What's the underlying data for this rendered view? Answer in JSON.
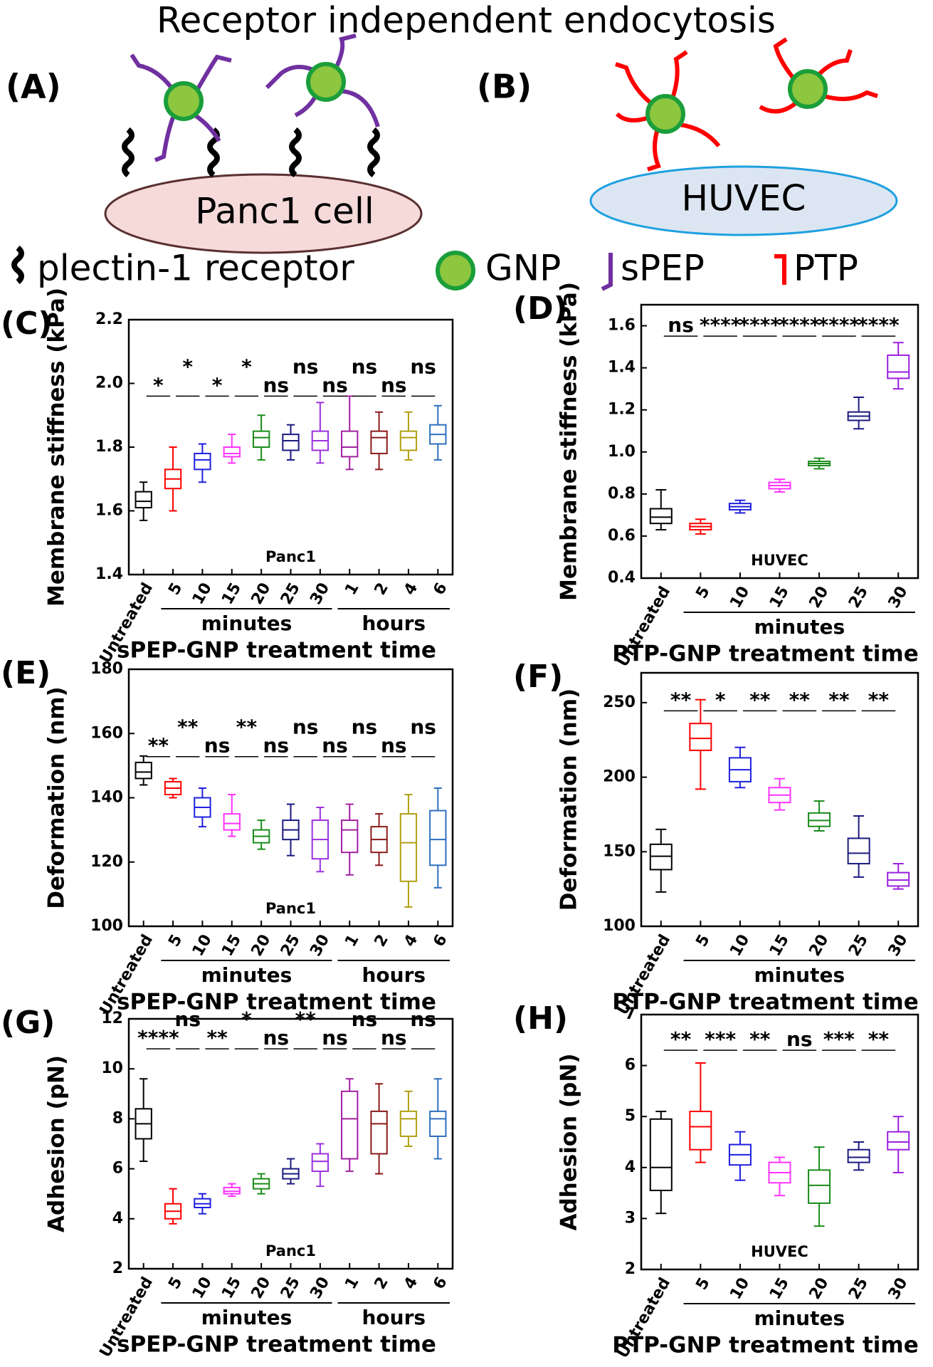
{
  "diagram": {
    "title": "Receptor independent endocytosis",
    "panels": [
      {
        "label": "(A)",
        "cell": "Panc1 cell"
      },
      {
        "label": "(B)",
        "cell": "HUVEC"
      }
    ],
    "legend": [
      "plectin-1 receptor",
      "GNP",
      "sPEP",
      "PTP"
    ]
  },
  "chart_data": [
    {
      "type": "box",
      "panel": "(C)",
      "ylabel": "Membrane stiffness (kPa)",
      "xlabel": "sPEP-GNP treatment time",
      "annotation": "Panc1",
      "categories": [
        "Untreated",
        "5",
        "10",
        "15",
        "20",
        "25",
        "30",
        "1",
        "2",
        "4",
        "6"
      ],
      "category_groups": [
        null,
        "minutes",
        "minutes",
        "minutes",
        "minutes",
        "minutes",
        "minutes",
        "hours",
        "hours",
        "hours",
        "hours"
      ],
      "colors": [
        "#000000",
        "#ff0000",
        "#1f1fe0",
        "#ff33ff",
        "#1a8c1a",
        "#1a1a80",
        "#9b30e0",
        "#a020a0",
        "#8b1a1a",
        "#b0a010",
        "#2f6fc0"
      ],
      "boxes": [
        {
          "min": 1.57,
          "q1": 1.61,
          "median": 1.63,
          "q3": 1.66,
          "max": 1.69
        },
        {
          "min": 1.6,
          "q1": 1.67,
          "median": 1.7,
          "q3": 1.73,
          "max": 1.8
        },
        {
          "min": 1.69,
          "q1": 1.73,
          "median": 1.76,
          "q3": 1.78,
          "max": 1.81
        },
        {
          "min": 1.75,
          "q1": 1.77,
          "median": 1.78,
          "q3": 1.8,
          "max": 1.84
        },
        {
          "min": 1.76,
          "q1": 1.8,
          "median": 1.83,
          "q3": 1.85,
          "max": 1.9
        },
        {
          "min": 1.76,
          "q1": 1.79,
          "median": 1.82,
          "q3": 1.84,
          "max": 1.87
        },
        {
          "min": 1.75,
          "q1": 1.79,
          "median": 1.82,
          "q3": 1.85,
          "max": 1.94
        },
        {
          "min": 1.73,
          "q1": 1.77,
          "median": 1.8,
          "q3": 1.85,
          "max": 1.96
        },
        {
          "min": 1.73,
          "q1": 1.78,
          "median": 1.83,
          "q3": 1.85,
          "max": 1.91
        },
        {
          "min": 1.76,
          "q1": 1.79,
          "median": 1.83,
          "q3": 1.85,
          "max": 1.91
        },
        {
          "min": 1.76,
          "q1": 1.81,
          "median": 1.84,
          "q3": 1.87,
          "max": 1.93
        }
      ],
      "significance": [
        "*",
        "*",
        "*",
        "*",
        "ns",
        "ns",
        "ns",
        "ns",
        "ns",
        "ns"
      ],
      "ylim": [
        1.4,
        2.2
      ],
      "yticks": [
        1.4,
        1.6,
        1.8,
        {
          "value": 2,
          "label": "2.0"
        },
        2.2
      ]
    },
    {
      "type": "box",
      "panel": "(D)",
      "ylabel": "Membrane stiffness (kPa)",
      "xlabel": "PTP-GNP treatment time",
      "annotation": "HUVEC",
      "categories": [
        "Untreated",
        "5",
        "10",
        "15",
        "20",
        "25",
        "30"
      ],
      "category_groups": [
        null,
        "minutes",
        "minutes",
        "minutes",
        "minutes",
        "minutes",
        "minutes"
      ],
      "colors": [
        "#000000",
        "#ff0000",
        "#1f1fe0",
        "#ff33ff",
        "#1a8c1a",
        "#1a1a80",
        "#9a20e0"
      ],
      "boxes": [
        {
          "min": 0.63,
          "q1": 0.66,
          "median": 0.69,
          "q3": 0.73,
          "max": 0.82
        },
        {
          "min": 0.61,
          "q1": 0.63,
          "median": 0.645,
          "q3": 0.66,
          "max": 0.68
        },
        {
          "min": 0.71,
          "q1": 0.725,
          "median": 0.74,
          "q3": 0.755,
          "max": 0.77
        },
        {
          "min": 0.81,
          "q1": 0.825,
          "median": 0.84,
          "q3": 0.855,
          "max": 0.87
        },
        {
          "min": 0.92,
          "q1": 0.935,
          "median": 0.945,
          "q3": 0.955,
          "max": 0.97
        },
        {
          "min": 1.11,
          "q1": 1.15,
          "median": 1.17,
          "q3": 1.19,
          "max": 1.26
        },
        {
          "min": 1.3,
          "q1": 1.35,
          "median": 1.38,
          "q3": 1.46,
          "max": 1.52
        }
      ],
      "significance": [
        "ns",
        "****",
        "****",
        "****",
        "****",
        "****"
      ],
      "ylim": [
        0.4,
        1.7
      ],
      "yticks": [
        0.4,
        0.6,
        0.8,
        {
          "value": 1,
          "label": "1.0"
        },
        1.2,
        1.4,
        1.6
      ]
    },
    {
      "type": "box",
      "panel": "(E)",
      "ylabel": "Deformation (nm)",
      "xlabel": "sPEP-GNP treatment time",
      "annotation": "Panc1",
      "categories": [
        "Untreated",
        "5",
        "10",
        "15",
        "20",
        "25",
        "30",
        "1",
        "2",
        "4",
        "6"
      ],
      "category_groups": [
        null,
        "minutes",
        "minutes",
        "minutes",
        "minutes",
        "minutes",
        "minutes",
        "hours",
        "hours",
        "hours",
        "hours"
      ],
      "colors": [
        "#000000",
        "#ff0000",
        "#1f1fe0",
        "#ff33ff",
        "#1a8c1a",
        "#1a1a80",
        "#9b30e0",
        "#a020a0",
        "#8b1a1a",
        "#b0a010",
        "#2f6fc0"
      ],
      "boxes": [
        {
          "min": 144,
          "q1": 146,
          "median": 148,
          "q3": 151,
          "max": 153
        },
        {
          "min": 140,
          "q1": 141,
          "median": 143,
          "q3": 145,
          "max": 146
        },
        {
          "min": 131,
          "q1": 134,
          "median": 137,
          "q3": 140,
          "max": 143
        },
        {
          "min": 128,
          "q1": 130,
          "median": 132,
          "q3": 135,
          "max": 141
        },
        {
          "min": 124,
          "q1": 126,
          "median": 128,
          "q3": 130,
          "max": 133
        },
        {
          "min": 122,
          "q1": 127,
          "median": 130,
          "q3": 133,
          "max": 138
        },
        {
          "min": 117,
          "q1": 121,
          "median": 127,
          "q3": 133,
          "max": 137
        },
        {
          "min": 116,
          "q1": 123,
          "median": 130,
          "q3": 133,
          "max": 138
        },
        {
          "min": 119,
          "q1": 123,
          "median": 127,
          "q3": 131,
          "max": 135
        },
        {
          "min": 106,
          "q1": 114,
          "median": 126,
          "q3": 135,
          "max": 141
        },
        {
          "min": 112,
          "q1": 119,
          "median": 127,
          "q3": 136,
          "max": 143
        }
      ],
      "significance": [
        "**",
        "**",
        "ns",
        "**",
        "ns",
        "ns",
        "ns",
        "ns",
        "ns",
        "ns"
      ],
      "ylim": [
        100,
        180
      ],
      "yticks": [
        100,
        120,
        140,
        160,
        180
      ]
    },
    {
      "type": "box",
      "panel": "(F)",
      "ylabel": "Deformation (nm)",
      "xlabel": "PTP-GNP treatment time",
      "categories": [
        "Untreated",
        "5",
        "10",
        "15",
        "20",
        "25",
        "30"
      ],
      "category_groups": [
        null,
        "minutes",
        "minutes",
        "minutes",
        "minutes",
        "minutes",
        "minutes"
      ],
      "colors": [
        "#000000",
        "#ff0000",
        "#1f1fe0",
        "#ff33ff",
        "#1a8c1a",
        "#1a1a80",
        "#9a20e0"
      ],
      "boxes": [
        {
          "min": 123,
          "q1": 138,
          "median": 147,
          "q3": 155,
          "max": 165
        },
        {
          "min": 192,
          "q1": 218,
          "median": 226,
          "q3": 236,
          "max": 252
        },
        {
          "min": 193,
          "q1": 197,
          "median": 205,
          "q3": 213,
          "max": 220
        },
        {
          "min": 178,
          "q1": 183,
          "median": 188,
          "q3": 193,
          "max": 199
        },
        {
          "min": 164,
          "q1": 167,
          "median": 171,
          "q3": 176,
          "max": 184
        },
        {
          "min": 133,
          "q1": 142,
          "median": 149,
          "q3": 159,
          "max": 174
        },
        {
          "min": 125,
          "q1": 127,
          "median": 131,
          "q3": 136,
          "max": 142
        }
      ],
      "significance": [
        "**",
        "*",
        "**",
        "**",
        "**",
        "**"
      ],
      "ylim": [
        100,
        270
      ],
      "yticks": [
        100,
        150,
        200,
        250
      ]
    },
    {
      "type": "box",
      "panel": "(G)",
      "ylabel": "Adhesion (pN)",
      "xlabel": "sPEP-GNP treatment time",
      "annotation": "Panc1",
      "categories": [
        "Untreated",
        "5",
        "10",
        "15",
        "20",
        "25",
        "30",
        "1",
        "2",
        "4",
        "6"
      ],
      "category_groups": [
        null,
        "minutes",
        "minutes",
        "minutes",
        "minutes",
        "minutes",
        "minutes",
        "hours",
        "hours",
        "hours",
        "hours"
      ],
      "colors": [
        "#000000",
        "#ff0000",
        "#1f1fe0",
        "#ff33ff",
        "#1a8c1a",
        "#1a1a80",
        "#9b30e0",
        "#a020a0",
        "#8b1a1a",
        "#b0a010",
        "#2f6fc0"
      ],
      "boxes": [
        {
          "min": 6.3,
          "q1": 7.2,
          "median": 7.8,
          "q3": 8.4,
          "max": 9.6
        },
        {
          "min": 3.8,
          "q1": 4.0,
          "median": 4.3,
          "q3": 4.6,
          "max": 5.2
        },
        {
          "min": 4.2,
          "q1": 4.45,
          "median": 4.6,
          "q3": 4.8,
          "max": 5.0
        },
        {
          "min": 4.9,
          "q1": 5.0,
          "median": 5.1,
          "q3": 5.25,
          "max": 5.4
        },
        {
          "min": 5.0,
          "q1": 5.2,
          "median": 5.4,
          "q3": 5.6,
          "max": 5.8
        },
        {
          "min": 5.4,
          "q1": 5.6,
          "median": 5.8,
          "q3": 6.0,
          "max": 6.4
        },
        {
          "min": 5.3,
          "q1": 5.9,
          "median": 6.3,
          "q3": 6.6,
          "max": 7.0
        },
        {
          "min": 5.9,
          "q1": 6.4,
          "median": 8.0,
          "q3": 9.1,
          "max": 9.6
        },
        {
          "min": 5.8,
          "q1": 6.6,
          "median": 7.8,
          "q3": 8.3,
          "max": 9.4
        },
        {
          "min": 6.9,
          "q1": 7.3,
          "median": 8.0,
          "q3": 8.3,
          "max": 9.1
        },
        {
          "min": 6.4,
          "q1": 7.3,
          "median": 8.0,
          "q3": 8.3,
          "max": 9.6
        }
      ],
      "significance": [
        "****",
        "ns",
        "**",
        "*",
        "ns",
        "**",
        "ns",
        "ns",
        "ns",
        "ns"
      ],
      "ylim": [
        2,
        12
      ],
      "yticks": [
        2,
        4,
        6,
        8,
        10,
        12
      ]
    },
    {
      "type": "box",
      "panel": "(H)",
      "ylabel": "Adhesion (pN)",
      "xlabel": "PTP-GNP treatment time",
      "annotation": "HUVEC",
      "categories": [
        "Untreated",
        "5",
        "10",
        "15",
        "20",
        "25",
        "30"
      ],
      "category_groups": [
        null,
        "minutes",
        "minutes",
        "minutes",
        "minutes",
        "minutes",
        "minutes"
      ],
      "colors": [
        "#000000",
        "#ff0000",
        "#1f1fe0",
        "#ff33ff",
        "#1a8c1a",
        "#1a1a80",
        "#9a20e0"
      ],
      "boxes": [
        {
          "min": 3.1,
          "q1": 3.55,
          "median": 4.0,
          "q3": 4.95,
          "max": 5.1
        },
        {
          "min": 4.1,
          "q1": 4.35,
          "median": 4.8,
          "q3": 5.1,
          "max": 6.05
        },
        {
          "min": 3.75,
          "q1": 4.05,
          "median": 4.25,
          "q3": 4.45,
          "max": 4.7
        },
        {
          "min": 3.45,
          "q1": 3.7,
          "median": 3.9,
          "q3": 4.1,
          "max": 4.2
        },
        {
          "min": 2.85,
          "q1": 3.3,
          "median": 3.65,
          "q3": 3.95,
          "max": 4.4
        },
        {
          "min": 3.95,
          "q1": 4.1,
          "median": 4.2,
          "q3": 4.35,
          "max": 4.5
        },
        {
          "min": 3.9,
          "q1": 4.35,
          "median": 4.5,
          "q3": 4.7,
          "max": 5.0
        }
      ],
      "significance": [
        "**",
        "***",
        "**",
        "ns",
        "***",
        "**"
      ],
      "ylim": [
        2,
        7
      ],
      "yticks": [
        2,
        3,
        4,
        5,
        6,
        7
      ]
    }
  ]
}
